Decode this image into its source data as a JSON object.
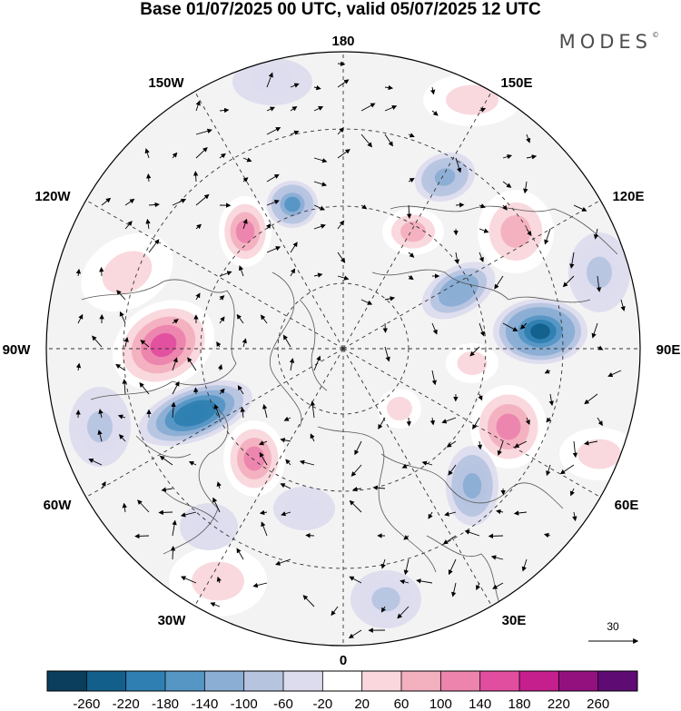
{
  "title": "Base 01/07/2025 00 UTC, valid 05/07/2025 12 UTC",
  "brand": {
    "name": "MODES",
    "mark": "©"
  },
  "map": {
    "projection": "north-polar-stereographic",
    "longitude_labels": [
      {
        "text": "180"
      },
      {
        "text": "150E"
      },
      {
        "text": "120E"
      },
      {
        "text": "90E"
      },
      {
        "text": "60E"
      },
      {
        "text": "30E"
      },
      {
        "text": "0"
      },
      {
        "text": "30W"
      },
      {
        "text": "60W"
      },
      {
        "text": "90W"
      },
      {
        "text": "120W"
      },
      {
        "text": "150W"
      }
    ],
    "reference_vector": {
      "label": "30",
      "icon": "arrow-right-icon"
    },
    "anomaly_features": [
      {
        "name": "negative",
        "value": -200,
        "color": "#0f5f8f"
      },
      {
        "name": "negative",
        "value": -220,
        "color": "#0f5f8f"
      },
      {
        "name": "positive",
        "value": 180,
        "color": "#d6409a"
      },
      {
        "name": "positive",
        "value": 150,
        "color": "#e466a9"
      },
      {
        "name": "positive",
        "value": 130,
        "color": "#e87fb4"
      }
    ]
  },
  "colorbar": {
    "colors": [
      "#0b3e5c",
      "#125f8c",
      "#2f7fb2",
      "#5596c4",
      "#8aaed4",
      "#b6c4e0",
      "#dcdcee",
      "#ffffff",
      "#f9d7dc",
      "#f3b0bf",
      "#ec84ad",
      "#e14e9f",
      "#c51f8d",
      "#93117f",
      "#5e0b73"
    ],
    "ticks": [
      "-260",
      "-220",
      "-180",
      "-140",
      "-100",
      "-60",
      "-20",
      "20",
      "60",
      "100",
      "140",
      "180",
      "220",
      "260"
    ]
  }
}
